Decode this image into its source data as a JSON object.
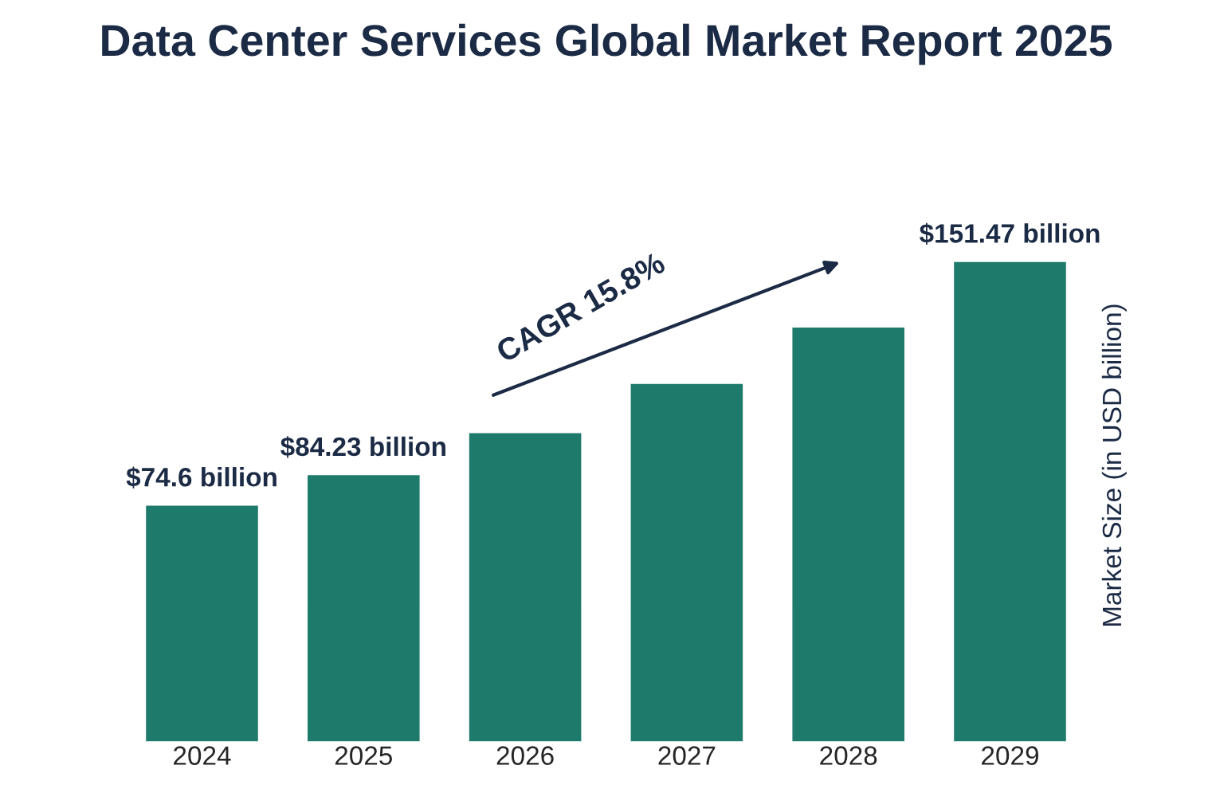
{
  "chart_data": {
    "type": "bar",
    "title": "Data Center Services Global Market Report 2025",
    "ylabel": "Market Size (in USD billion)",
    "categories": [
      "2024",
      "2025",
      "2026",
      "2027",
      "2028",
      "2029"
    ],
    "values": [
      74.6,
      84.23,
      97.5,
      113,
      130.8,
      151.47
    ],
    "color": "#1e7b6b",
    "tick_labels": "x",
    "value_labels": [
      "$74.6 billion",
      "$84.23 billion",
      null,
      null,
      null,
      "$151.47 billion"
    ],
    "annotations": [
      "CAGR 15.8%"
    ],
    "grid": false,
    "legend": false
  }
}
